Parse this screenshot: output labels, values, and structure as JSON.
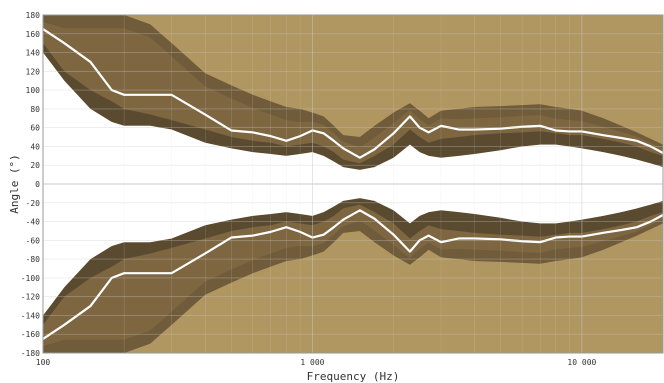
{
  "chart_data": {
    "type": "area",
    "title": "",
    "xlabel": "Frequency (Hz)",
    "ylabel": "Angle (°)",
    "xscale": "log",
    "xlim": [
      100,
      20000
    ],
    "ylim": [
      -180,
      180
    ],
    "grid": true,
    "x_ticks": [
      {
        "value": 100,
        "label": "100"
      },
      {
        "value": 1000,
        "label": "1 000"
      },
      {
        "value": 10000,
        "label": "10 000"
      }
    ],
    "y_ticks": [
      {
        "value": 180,
        "label": "180"
      },
      {
        "value": 160,
        "label": "160"
      },
      {
        "value": 140,
        "label": "140"
      },
      {
        "value": 120,
        "label": "120"
      },
      {
        "value": 100,
        "label": "100"
      },
      {
        "value": 80,
        "label": "80"
      },
      {
        "value": 60,
        "label": "60"
      },
      {
        "value": 40,
        "label": "40"
      },
      {
        "value": 20,
        "label": "20"
      },
      {
        "value": 0,
        "label": "0"
      },
      {
        "value": -20,
        "label": "-20"
      },
      {
        "value": -40,
        "label": "-40"
      },
      {
        "value": -60,
        "label": "-60"
      },
      {
        "value": -80,
        "label": "-80"
      },
      {
        "value": -100,
        "label": "-100"
      },
      {
        "value": -120,
        "label": "-120"
      },
      {
        "value": -140,
        "label": "-140"
      },
      {
        "value": -160,
        "label": "-160"
      },
      {
        "value": -180,
        "label": "-180"
      }
    ],
    "x": [
      100,
      120,
      150,
      180,
      200,
      250,
      300,
      400,
      500,
      600,
      700,
      800,
      900,
      1000,
      1100,
      1200,
      1300,
      1500,
      1700,
      2000,
      2300,
      2500,
      2700,
      3000,
      3500,
      4000,
      5000,
      6000,
      7000,
      8000,
      9000,
      10000,
      12000,
      14000,
      16000,
      18000,
      20000
    ],
    "series": [
      {
        "role": "band-6db",
        "color": "#b09660",
        "upper": [
          180,
          180,
          180,
          180,
          180,
          180,
          180,
          150,
          130,
          115,
          105,
          95,
          88,
          85,
          82,
          70,
          60,
          62,
          80,
          90,
          93,
          88,
          85,
          92,
          98,
          102,
          104,
          106,
          107,
          106,
          104,
          102,
          95,
          88,
          80,
          73,
          68
        ]
      },
      {
        "role": "band-3db",
        "color": "#7d6640",
        "upper": [
          180,
          180,
          180,
          180,
          180,
          170,
          150,
          118,
          105,
          95,
          88,
          82,
          80,
          76,
          72,
          62,
          52,
          50,
          62,
          76,
          86,
          78,
          70,
          78,
          80,
          82,
          83,
          84,
          85,
          82,
          80,
          78,
          70,
          62,
          55,
          48,
          42
        ]
      },
      {
        "role": "band-3db",
        "color": "#7d6640",
        "lower": [
          150,
          120,
          100,
          88,
          80,
          74,
          68,
          58,
          50,
          46,
          44,
          40,
          42,
          44,
          40,
          34,
          26,
          22,
          30,
          42,
          58,
          50,
          44,
          48,
          50,
          52,
          54,
          55,
          56,
          54,
          52,
          52,
          48,
          44,
          40,
          34,
          30
        ]
      },
      {
        "role": "band-6db",
        "color": "#5a4a30",
        "lower": [
          140,
          110,
          80,
          66,
          62,
          62,
          58,
          44,
          38,
          34,
          32,
          30,
          32,
          34,
          30,
          24,
          18,
          15,
          18,
          28,
          42,
          34,
          30,
          28,
          30,
          32,
          36,
          40,
          42,
          42,
          40,
          38,
          34,
          30,
          26,
          22,
          18
        ]
      },
      {
        "name": "",
        "role": "-6 dB beamwidth",
        "color": "#ffffff",
        "values": [
          165,
          150,
          130,
          100,
          95,
          95,
          95,
          74,
          57,
          55,
          51,
          46,
          51,
          57,
          54,
          46,
          38,
          28,
          37,
          54,
          72,
          60,
          55,
          62,
          58,
          58,
          59,
          61,
          62,
          57,
          56,
          56,
          52,
          49,
          46,
          40,
          33
        ]
      }
    ]
  }
}
